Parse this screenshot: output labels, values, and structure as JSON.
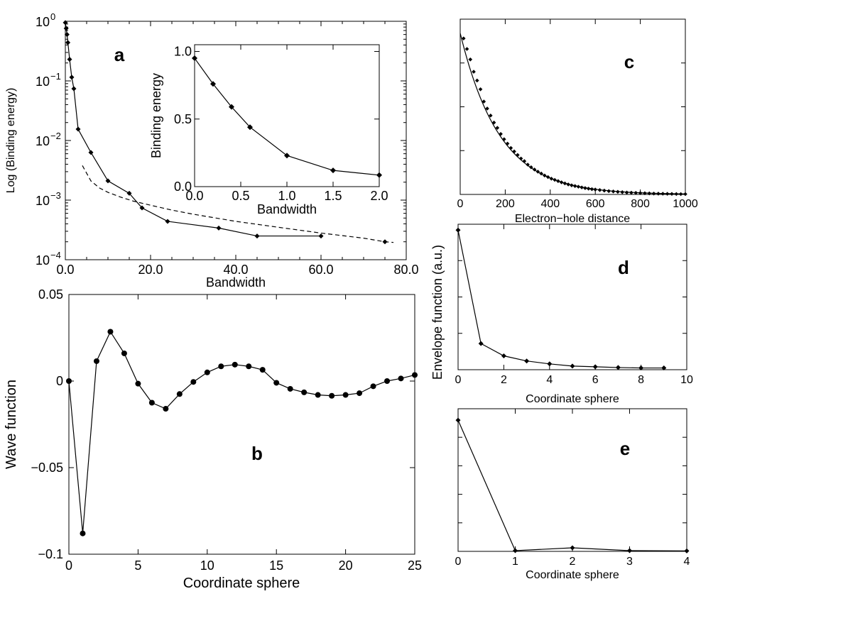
{
  "chart_data": [
    {
      "id": "a",
      "panel_label": "a",
      "type": "line",
      "xlabel": "Bandwidth",
      "ylabel": "Log (Binding energy)",
      "xlim": [
        0,
        80
      ],
      "ylim": [
        0.0001,
        1
      ],
      "yscale": "log",
      "x_ticks": [
        0,
        20,
        40,
        60,
        80
      ],
      "x_tick_labels": [
        "0.0",
        "20.0",
        "40.0",
        "60.0",
        "80.0"
      ],
      "y_ticks": [
        1,
        0.1,
        0.01,
        0.001,
        0.0001
      ],
      "y_tick_labels": [
        {
          "base": "10",
          "exp": "0"
        },
        {
          "base": "10",
          "exp": "−1"
        },
        {
          "base": "10",
          "exp": "−2"
        },
        {
          "base": "10",
          "exp": "−3"
        },
        {
          "base": "10",
          "exp": "−4"
        }
      ],
      "series": [
        {
          "style": "solid-diamond",
          "x": [
            0,
            0.2,
            0.4,
            0.6,
            1.0,
            1.5,
            2.0,
            3.0,
            6.0,
            10.0,
            15.0,
            18.0,
            24.0,
            36.0,
            45.0,
            60.0
          ],
          "y": [
            0.95,
            0.76,
            0.6,
            0.44,
            0.23,
            0.115,
            0.074,
            0.0155,
            0.0063,
            0.0021,
            0.0013,
            0.00074,
            0.00044,
            0.00034,
            0.00025,
            0.00025
          ]
        },
        {
          "style": "dashed",
          "x": [
            4,
            6,
            8,
            10,
            13,
            16,
            20,
            25,
            30,
            40,
            50,
            60,
            70,
            75,
            77
          ],
          "y": [
            0.0038,
            0.0021,
            0.0016,
            0.00135,
            0.00112,
            0.00096,
            0.00082,
            0.00068,
            0.00058,
            0.00044,
            0.00035,
            0.00028,
            0.00023,
            0.0002,
            0.000195
          ]
        },
        {
          "style": "diamond-only",
          "x": [
            75
          ],
          "y": [
            0.0002
          ]
        }
      ],
      "inset": {
        "type": "line",
        "xlabel": "Bandwidth",
        "ylabel": "Binding energy",
        "xlim": [
          0,
          2
        ],
        "ylim": [
          0,
          1.05
        ],
        "x_ticks": [
          0,
          0.5,
          1,
          1.5,
          2
        ],
        "x_tick_labels": [
          "0.0",
          "0.5",
          "1.0",
          "1.5",
          "2.0"
        ],
        "y_ticks": [
          0,
          0.5,
          1
        ],
        "y_tick_labels": [
          "0.0",
          "0.5",
          "1.0"
        ],
        "x": [
          0,
          0.2,
          0.4,
          0.6,
          1.0,
          1.5,
          2.0
        ],
        "y": [
          0.95,
          0.76,
          0.59,
          0.44,
          0.23,
          0.12,
          0.085
        ]
      }
    },
    {
      "id": "b",
      "panel_label": "b",
      "type": "line",
      "xlabel": "Coordinate sphere",
      "ylabel": "Wave function",
      "xlim": [
        0,
        25
      ],
      "ylim": [
        -0.1,
        0.05
      ],
      "x_ticks": [
        0,
        5,
        10,
        15,
        20,
        25
      ],
      "x_tick_labels": [
        "0",
        "5",
        "10",
        "15",
        "20",
        "25"
      ],
      "y_ticks": [
        0.05,
        0,
        -0.05,
        -0.1
      ],
      "y_tick_labels": [
        "0.05",
        "0",
        "−0.05",
        "−0.1"
      ],
      "x": [
        0,
        1,
        2,
        3,
        4,
        5,
        6,
        7,
        8,
        9,
        10,
        11,
        12,
        13,
        14,
        15,
        16,
        17,
        18,
        19,
        20,
        21,
        22,
        23,
        24,
        25
      ],
      "y": [
        0,
        -0.088,
        0.0115,
        0.0285,
        0.016,
        -0.0015,
        -0.0125,
        -0.016,
        -0.0075,
        -0.0005,
        0.005,
        0.0085,
        0.0095,
        0.0085,
        0.0065,
        -0.001,
        -0.0045,
        -0.0065,
        -0.008,
        -0.0085,
        -0.008,
        -0.007,
        -0.003,
        0,
        0.0015,
        0.0035
      ]
    },
    {
      "id": "c",
      "panel_label": "c",
      "type": "line",
      "xlabel": "Electron−hole distance",
      "ylabel": "",
      "xlim": [
        0,
        1000
      ],
      "ylim": [
        0,
        1
      ],
      "x_ticks": [
        0,
        200,
        400,
        600,
        800,
        1000
      ],
      "x_tick_labels": [
        "0",
        "200",
        "400",
        "600",
        "800",
        "1000"
      ],
      "series": [
        {
          "style": "solid",
          "decay_length": 175,
          "amplitude": 0.92
        },
        {
          "style": "diamond-only",
          "x": [
            15,
            30,
            45,
            60,
            75,
            90,
            105,
            120,
            135,
            150,
            165,
            180,
            195,
            210,
            225,
            240,
            255,
            270,
            285,
            300,
            315,
            330,
            345,
            360,
            375,
            390,
            405,
            420,
            435,
            450,
            465,
            480,
            495,
            510,
            525,
            540,
            555,
            570,
            585,
            600,
            620,
            640,
            660,
            680,
            700,
            720,
            740,
            760,
            780,
            800,
            820,
            840,
            860,
            880,
            900,
            920,
            940,
            960,
            980,
            1000
          ],
          "y": [
            0.89,
            0.83,
            0.77,
            0.7,
            0.65,
            0.6,
            0.53,
            0.49,
            0.45,
            0.41,
            0.38,
            0.345,
            0.315,
            0.29,
            0.265,
            0.245,
            0.225,
            0.205,
            0.19,
            0.17,
            0.155,
            0.142,
            0.13,
            0.119,
            0.108,
            0.099,
            0.09,
            0.083,
            0.076,
            0.069,
            0.063,
            0.057,
            0.052,
            0.048,
            0.044,
            0.04,
            0.036,
            0.033,
            0.03,
            0.028,
            0.025,
            0.022,
            0.019,
            0.017,
            0.015,
            0.013,
            0.011,
            0.01,
            0.009,
            0.008,
            0.007,
            0.006,
            0.005,
            0.0045,
            0.004,
            0.0035,
            0.003,
            0.0025,
            0.002,
            0.002
          ]
        }
      ]
    },
    {
      "id": "d",
      "panel_label": "d",
      "type": "line",
      "xlabel": "Coordinate sphere",
      "ylabel": "Envelope function (a.u.)",
      "xlim": [
        0,
        10
      ],
      "ylim": [
        0,
        1
      ],
      "x_ticks": [
        0,
        2,
        4,
        6,
        8,
        10
      ],
      "x_tick_labels": [
        "0",
        "2",
        "4",
        "6",
        "8",
        "10"
      ],
      "x": [
        0,
        1,
        2,
        3,
        4,
        5,
        6,
        7,
        8,
        9
      ],
      "y": [
        0.96,
        0.18,
        0.095,
        0.06,
        0.04,
        0.025,
        0.02,
        0.015,
        0.012,
        0.012
      ]
    },
    {
      "id": "e",
      "panel_label": "e",
      "type": "line",
      "xlabel": "Coordinate sphere",
      "ylabel": "",
      "xlim": [
        0,
        4
      ],
      "ylim": [
        0,
        1
      ],
      "x_ticks": [
        0,
        1,
        2,
        3,
        4
      ],
      "x_tick_labels": [
        "0",
        "1",
        "2",
        "3",
        "4"
      ],
      "x": [
        0,
        1,
        2,
        3,
        4
      ],
      "y": [
        0.92,
        0.005,
        0.025,
        0.005,
        0.003
      ]
    }
  ]
}
